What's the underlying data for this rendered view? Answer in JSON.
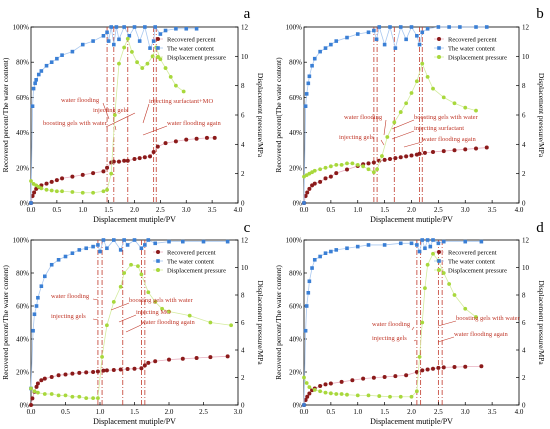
{
  "colors": {
    "recovered": "#8b1a1a",
    "water": "#3a7fd5",
    "pressure": "#a8d83c",
    "vline": "#c0392b",
    "annotation": "#c0392b",
    "axis": "#000000"
  },
  "chart_data": [
    {
      "panel": "a",
      "type": "scatter",
      "xlabel": "Displacement mutiple/PV",
      "ylabel": "Recovered percent/The water content)",
      "y2label": "Displacement pressure/MPa",
      "xlim": [
        0,
        4.0
      ],
      "ylim": [
        0,
        100
      ],
      "y2lim": [
        0,
        12
      ],
      "xticks": [
        "0.0",
        "0.5",
        "1.0",
        "1.5",
        "2.0",
        "2.5",
        "3.0",
        "3.5",
        "4.0"
      ],
      "yticks": [
        "0%",
        "20%",
        "40%",
        "60%",
        "80%",
        "100%"
      ],
      "y2ticks": [
        "0",
        "2",
        "4",
        "6",
        "8",
        "10",
        "12"
      ],
      "legend": [
        "Recovered percent",
        "The water content",
        "Displacement pressure"
      ],
      "legend_position": "top-right",
      "vlines": [
        1.47,
        1.6,
        1.87,
        2.37,
        2.42
      ],
      "annotations": [
        "water flooding",
        "injecting gels",
        "boosting gels with water",
        "injecting surfactant+MO",
        "water flooding again"
      ],
      "series": [
        {
          "name": "Recovered percent",
          "x": [
            0,
            0.03,
            0.06,
            0.1,
            0.15,
            0.2,
            0.3,
            0.4,
            0.5,
            0.6,
            0.8,
            1.0,
            1.2,
            1.4,
            1.47,
            1.55,
            1.6,
            1.7,
            1.8,
            1.87,
            2.0,
            2.1,
            2.2,
            2.3,
            2.37,
            2.45,
            2.6,
            2.8,
            3.0,
            3.2,
            3.4,
            3.55
          ],
          "y": [
            0,
            4,
            6,
            8,
            9,
            10,
            11,
            12,
            13,
            14,
            15,
            16,
            17,
            18,
            20,
            23,
            23.5,
            23.5,
            24,
            24,
            25,
            25.5,
            26,
            26.5,
            29,
            32,
            34,
            35,
            36,
            36.5,
            37,
            37
          ]
        },
        {
          "name": "The water content",
          "x": [
            0,
            0.03,
            0.05,
            0.08,
            0.1,
            0.15,
            0.2,
            0.3,
            0.4,
            0.5,
            0.6,
            0.8,
            1.0,
            1.2,
            1.4,
            1.47,
            1.5,
            1.55,
            1.6,
            1.65,
            1.7,
            1.8,
            1.9,
            2.0,
            2.1,
            2.2,
            2.3,
            2.37,
            2.4,
            2.5,
            2.6,
            2.8,
            3.0,
            3.2
          ],
          "y": [
            0,
            55,
            65,
            68,
            70,
            73,
            75,
            78,
            80,
            82,
            84,
            86,
            90,
            92,
            95,
            97,
            92,
            100,
            90,
            100,
            93,
            100,
            95,
            100,
            92,
            100,
            88,
            92,
            100,
            96,
            98,
            99,
            99,
            99
          ]
        },
        {
          "name": "Displacement pressure",
          "x": [
            0,
            0.05,
            0.1,
            0.15,
            0.2,
            0.3,
            0.4,
            0.5,
            0.6,
            0.8,
            1.0,
            1.2,
            1.4,
            1.47,
            1.55,
            1.62,
            1.7,
            1.8,
            1.87,
            1.95,
            2.05,
            2.15,
            2.25,
            2.35,
            2.42,
            2.5,
            2.6,
            2.7,
            2.8,
            2.95
          ],
          "y": [
            1.5,
            1.3,
            1.2,
            1.1,
            1.0,
            0.9,
            0.85,
            0.8,
            0.8,
            0.75,
            0.7,
            0.7,
            0.8,
            0.9,
            2.0,
            6.0,
            9.5,
            10.6,
            11.2,
            10.3,
            9.6,
            9.2,
            9.5,
            10.0,
            10.6,
            9.8,
            9.2,
            8.6,
            8.0,
            7.6
          ]
        }
      ]
    },
    {
      "panel": "b",
      "type": "scatter",
      "xlabel": "Displacement mutiple/PV",
      "ylabel": "Recovered percent(The water content)",
      "y2label": "Displacement pressure/MPa",
      "xlim": [
        0,
        4.0
      ],
      "ylim": [
        0,
        100
      ],
      "y2lim": [
        0,
        12
      ],
      "xticks": [
        "0.0",
        "0.5",
        "1.0",
        "1.5",
        "2.0",
        "2.5",
        "3.0",
        "3.5",
        "4.0"
      ],
      "yticks": [
        "0%",
        "20%",
        "40%",
        "60%",
        "80%",
        "100%"
      ],
      "y2ticks": [
        "0",
        "2",
        "4",
        "6",
        "8",
        "10",
        "12"
      ],
      "legend": [
        "Recovered percent",
        "The water content",
        "Displacement pressure"
      ],
      "legend_position": "top-right",
      "vlines": [
        1.3,
        1.36,
        1.68,
        2.15,
        2.2
      ],
      "annotations": [
        "water flooding",
        "injecting gels",
        "boosting gels with water",
        "injecting surfactant",
        "water flooding again"
      ],
      "series": [
        {
          "name": "Recovered percent",
          "x": [
            0,
            0.03,
            0.06,
            0.1,
            0.15,
            0.2,
            0.3,
            0.4,
            0.5,
            0.6,
            0.8,
            1.0,
            1.1,
            1.2,
            1.3,
            1.4,
            1.5,
            1.6,
            1.7,
            1.8,
            1.9,
            2.0,
            2.1,
            2.15,
            2.25,
            2.4,
            2.6,
            2.8,
            3.0,
            3.2,
            3.4
          ],
          "y": [
            0,
            4,
            6,
            8,
            10,
            11,
            12,
            14,
            15,
            17,
            19,
            21,
            22,
            22.5,
            23,
            24,
            24.5,
            25,
            25.5,
            26,
            26.5,
            27,
            27.5,
            28,
            28.5,
            29,
            29.5,
            30,
            30.5,
            31,
            31.5
          ]
        },
        {
          "name": "The water content",
          "x": [
            0,
            0.03,
            0.05,
            0.08,
            0.1,
            0.15,
            0.2,
            0.3,
            0.4,
            0.5,
            0.6,
            0.8,
            1.0,
            1.2,
            1.3,
            1.35,
            1.4,
            1.5,
            1.6,
            1.7,
            1.8,
            1.9,
            2.0,
            2.1,
            2.15,
            2.2,
            2.3,
            2.5,
            2.7,
            2.9,
            3.2,
            3.4
          ],
          "y": [
            0,
            55,
            62,
            68,
            72,
            78,
            82,
            86,
            88,
            90,
            92,
            94,
            96,
            97,
            98,
            93,
            100,
            90,
            100,
            88,
            100,
            93,
            100,
            95,
            90,
            97,
            99,
            100,
            100,
            100,
            100,
            100
          ]
        },
        {
          "name": "Displacement pressure",
          "x": [
            0,
            0.05,
            0.1,
            0.15,
            0.2,
            0.3,
            0.4,
            0.5,
            0.6,
            0.7,
            0.8,
            0.9,
            1.0,
            1.1,
            1.2,
            1.3,
            1.36,
            1.45,
            1.55,
            1.68,
            1.8,
            1.9,
            2.0,
            2.1,
            2.2,
            2.3,
            2.4,
            2.6,
            2.8,
            3.0,
            3.2
          ],
          "y": [
            1.8,
            1.9,
            2.0,
            2.1,
            2.2,
            2.3,
            2.4,
            2.5,
            2.6,
            2.6,
            2.7,
            2.7,
            2.6,
            2.5,
            2.3,
            2.1,
            2.3,
            3.2,
            4.5,
            5.5,
            6.2,
            6.8,
            7.5,
            8.3,
            9.5,
            8.6,
            7.8,
            7.2,
            6.8,
            6.5,
            6.3
          ]
        }
      ]
    },
    {
      "panel": "c",
      "type": "scatter",
      "xlabel": "Displacement mutiple/PV",
      "ylabel": "Recovered percent/The water content)",
      "y2label": "Displacement pressure/MPa",
      "xlim": [
        0,
        3.0
      ],
      "ylim": [
        0,
        100
      ],
      "y2lim": [
        0,
        12
      ],
      "xticks": [
        "0.0",
        "0.5",
        "1.0",
        "1.5",
        "2.0",
        "2.5",
        "3.0"
      ],
      "yticks": [
        "0%",
        "20%",
        "40%",
        "60%",
        "80%",
        "100%"
      ],
      "y2ticks": [
        "0",
        "2",
        "4",
        "6",
        "8",
        "10",
        "12"
      ],
      "legend": [
        "Recovered percent",
        "The water content",
        "Displacement pressure"
      ],
      "legend_position": "top-right",
      "vlines": [
        0.97,
        1.03,
        1.33,
        1.6,
        1.65
      ],
      "annotations": [
        "water flooding",
        "injecting gels",
        "boosting gels with water",
        "injecting MO",
        "water flooding again"
      ],
      "series": [
        {
          "name": "Recovered percent",
          "x": [
            0,
            0.02,
            0.05,
            0.08,
            0.1,
            0.15,
            0.2,
            0.3,
            0.4,
            0.5,
            0.6,
            0.7,
            0.8,
            0.9,
            0.97,
            1.05,
            1.1,
            1.2,
            1.3,
            1.4,
            1.5,
            1.6,
            1.65,
            1.7,
            1.8,
            2.0,
            2.2,
            2.4,
            2.6,
            2.85
          ],
          "y": [
            0,
            4,
            8,
            11,
            13,
            15,
            16,
            17,
            18,
            18.5,
            19,
            19.5,
            19.8,
            20,
            20.3,
            20.8,
            21,
            21.2,
            21.5,
            21.8,
            22,
            22.3,
            24,
            25.5,
            26.5,
            27.5,
            28,
            28.5,
            29,
            29.5
          ]
        },
        {
          "name": "The water content",
          "x": [
            0,
            0.03,
            0.05,
            0.08,
            0.1,
            0.15,
            0.2,
            0.3,
            0.4,
            0.5,
            0.6,
            0.7,
            0.8,
            0.9,
            0.97,
            1.0,
            1.05,
            1.1,
            1.2,
            1.3,
            1.35,
            1.4,
            1.5,
            1.6,
            1.65,
            1.7,
            1.8,
            2.0,
            2.2,
            2.5,
            2.85
          ],
          "y": [
            10,
            45,
            55,
            60,
            65,
            72,
            78,
            85,
            88,
            90,
            92,
            94,
            95,
            96,
            97,
            93,
            100,
            95,
            100,
            94,
            100,
            97,
            100,
            95,
            97,
            100,
            98,
            99,
            99,
            99,
            99
          ]
        },
        {
          "name": "Displacement pressure",
          "x": [
            0,
            0.05,
            0.1,
            0.2,
            0.3,
            0.4,
            0.5,
            0.6,
            0.7,
            0.8,
            0.9,
            0.97,
            1.03,
            1.1,
            1.2,
            1.3,
            1.35,
            1.45,
            1.55,
            1.6,
            1.7,
            1.8,
            1.9,
            2.0,
            2.3,
            2.6,
            2.9
          ],
          "y": [
            1.2,
            1.0,
            0.9,
            0.8,
            0.8,
            0.7,
            0.7,
            0.6,
            0.6,
            0.5,
            0.5,
            0.5,
            3.5,
            5.8,
            7.5,
            8.6,
            9.6,
            10.2,
            10.1,
            9.5,
            8.2,
            7.5,
            7.0,
            6.8,
            6.5,
            6.0,
            5.8
          ]
        }
      ]
    },
    {
      "panel": "d",
      "type": "scatter",
      "xlabel": "Displacement mutiple/PV",
      "ylabel": "Recovered percent/The water content)",
      "y2label": "Displacement pressure/MPa",
      "xlim": [
        0,
        4.0
      ],
      "ylim": [
        0,
        100
      ],
      "y2lim": [
        0,
        12
      ],
      "xticks": [
        "0.0",
        "0.5",
        "1.0",
        "1.5",
        "2.0",
        "2.5",
        "3.0",
        "3.5",
        "4.0"
      ],
      "yticks": [
        "0%",
        "20%",
        "40%",
        "60%",
        "80%",
        "100%"
      ],
      "y2ticks": [
        "0",
        "2",
        "4",
        "6",
        "8",
        "10",
        "12"
      ],
      "legend": [
        "Recovered percent",
        "The water content",
        "Displacement pressure"
      ],
      "legend_position": "top-right",
      "vlines": [
        2.1,
        2.17,
        2.5,
        2.57
      ],
      "annotations": [
        "water flooding",
        "injecting gels",
        "boosting gels with water",
        "water flooding again"
      ],
      "series": [
        {
          "name": "Recovered percent",
          "x": [
            0,
            0.03,
            0.06,
            0.1,
            0.15,
            0.2,
            0.3,
            0.4,
            0.5,
            0.7,
            0.9,
            1.1,
            1.3,
            1.5,
            1.7,
            1.9,
            2.1,
            2.2,
            2.3,
            2.4,
            2.5,
            2.6,
            2.8,
            3.0,
            3.3
          ],
          "y": [
            0,
            3,
            5,
            7,
            9,
            10,
            11.5,
            12.5,
            13,
            14,
            15,
            16,
            16.5,
            17,
            17.5,
            18,
            20,
            21,
            21.5,
            22,
            22.5,
            22.8,
            23,
            23.2,
            23.5
          ]
        },
        {
          "name": "The water content",
          "x": [
            0,
            0.03,
            0.05,
            0.08,
            0.1,
            0.15,
            0.2,
            0.3,
            0.4,
            0.5,
            0.6,
            0.8,
            1.0,
            1.2,
            1.5,
            1.8,
            2.0,
            2.1,
            2.15,
            2.2,
            2.25,
            2.3,
            2.35,
            2.4,
            2.5,
            2.6,
            3.0,
            3.3
          ],
          "y": [
            0,
            45,
            60,
            68,
            75,
            83,
            88,
            90,
            92,
            93,
            94,
            95,
            96,
            97,
            97,
            98,
            98,
            97,
            93,
            100,
            95,
            100,
            96,
            100,
            98,
            99,
            99,
            99
          ]
        },
        {
          "name": "Displacement pressure",
          "x": [
            0,
            0.05,
            0.1,
            0.2,
            0.3,
            0.4,
            0.5,
            0.6,
            0.7,
            0.8,
            1.0,
            1.2,
            1.4,
            1.6,
            1.8,
            2.0,
            2.1,
            2.15,
            2.2,
            2.25,
            2.3,
            2.4,
            2.5,
            2.6,
            2.7,
            2.8,
            3.0,
            3.2
          ],
          "y": [
            2.0,
            1.6,
            1.3,
            1.1,
            1.0,
            0.9,
            0.85,
            0.8,
            0.8,
            0.75,
            0.7,
            0.7,
            0.65,
            0.6,
            0.6,
            0.6,
            1.0,
            3.5,
            6.0,
            8.5,
            10.2,
            11.0,
            10.5,
            9.6,
            8.8,
            8.0,
            7.0,
            6.4
          ]
        }
      ]
    }
  ]
}
